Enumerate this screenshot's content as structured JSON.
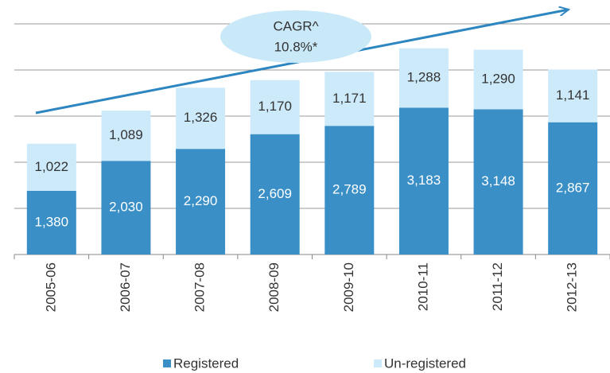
{
  "chart_data": {
    "type": "stacked_bar",
    "annotation": [
      "CAGR^",
      "10.8%*"
    ],
    "categories": [
      "2005-06",
      "2006-07",
      "2007-08",
      "2008-09",
      "2009-10",
      "2010-11",
      "2011-12",
      "2012-13"
    ],
    "series": [
      {
        "name": "Registered",
        "color": "#3a8fc7",
        "values": [
          1380,
          2030,
          2290,
          2609,
          2789,
          3183,
          3148,
          2867
        ],
        "value_labels": [
          "1,380",
          "2,030",
          "2,290",
          "2,609",
          "2,789",
          "3,183",
          "3,148",
          "2,867"
        ]
      },
      {
        "name": "Un-registered",
        "color": "#cdeafa",
        "values": [
          1022,
          1089,
          1326,
          1170,
          1171,
          1288,
          1290,
          1141
        ],
        "value_labels": [
          "1,022",
          "1,089",
          "1,326",
          "1,170",
          "1,171",
          "1,288",
          "1,290",
          "1,141"
        ]
      }
    ],
    "ylim": [
      0,
      5000
    ],
    "yticks": [
      0,
      1000,
      2000,
      3000,
      4000,
      5000
    ],
    "grid": true,
    "legend": "bottom"
  }
}
